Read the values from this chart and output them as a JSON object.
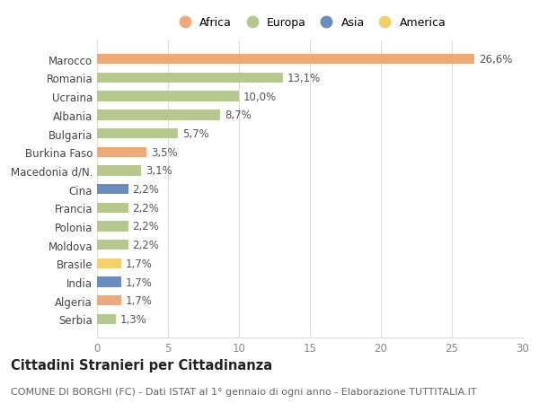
{
  "countries": [
    "Marocco",
    "Romania",
    "Ucraina",
    "Albania",
    "Bulgaria",
    "Burkina Faso",
    "Macedonia d/N.",
    "Cina",
    "Francia",
    "Polonia",
    "Moldova",
    "Brasile",
    "India",
    "Algeria",
    "Serbia"
  ],
  "values": [
    26.6,
    13.1,
    10.0,
    8.7,
    5.7,
    3.5,
    3.1,
    2.2,
    2.2,
    2.2,
    2.2,
    1.7,
    1.7,
    1.7,
    1.3
  ],
  "labels": [
    "26,6%",
    "13,1%",
    "10,0%",
    "8,7%",
    "5,7%",
    "3,5%",
    "3,1%",
    "2,2%",
    "2,2%",
    "2,2%",
    "2,2%",
    "1,7%",
    "1,7%",
    "1,7%",
    "1,3%"
  ],
  "continents": [
    "Africa",
    "Europa",
    "Europa",
    "Europa",
    "Europa",
    "Africa",
    "Europa",
    "Asia",
    "Europa",
    "Europa",
    "Europa",
    "America",
    "Asia",
    "Africa",
    "Europa"
  ],
  "colors": {
    "Africa": "#EDAA78",
    "Europa": "#B5C98E",
    "Asia": "#6B8CBE",
    "America": "#F2D06B"
  },
  "title": "Cittadini Stranieri per Cittadinanza",
  "subtitle": "COMUNE DI BORGHI (FC) - Dati ISTAT al 1° gennaio di ogni anno - Elaborazione TUTTITALIA.IT",
  "xlim": [
    0,
    30
  ],
  "xticks": [
    0,
    5,
    10,
    15,
    20,
    25,
    30
  ],
  "bg_color": "#ffffff",
  "bar_height": 0.55,
  "grid_color": "#dddddd",
  "label_fontsize": 8.5,
  "title_fontsize": 10.5,
  "subtitle_fontsize": 8,
  "tick_fontsize": 8.5,
  "legend_fontsize": 9
}
